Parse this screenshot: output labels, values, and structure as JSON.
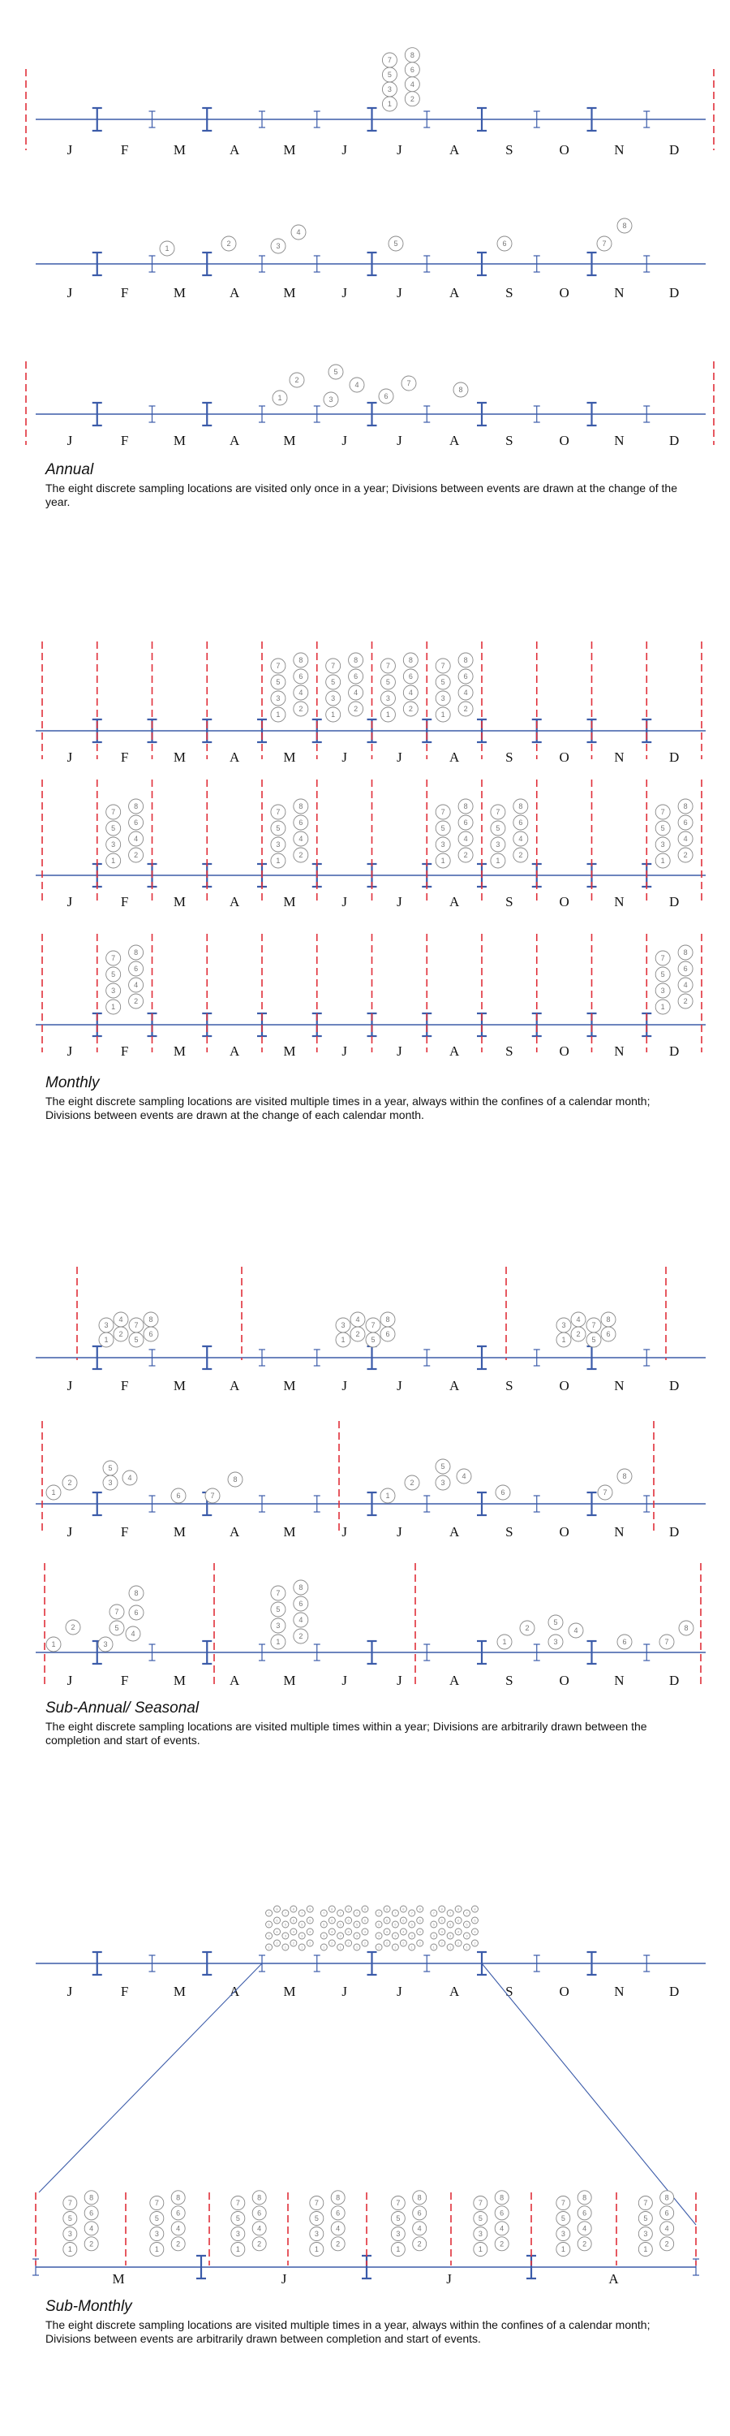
{
  "months": [
    "J",
    "F",
    "M",
    "A",
    "M",
    "J",
    "J",
    "A",
    "S",
    "O",
    "N",
    "D"
  ],
  "months_sub": [
    "M",
    "J",
    "J",
    "A"
  ],
  "captions": [
    {
      "title": "Annual",
      "body": "The eight discrete sampling locations are visited only once in a year; Divisions between events are drawn at the change of the year."
    },
    {
      "title": "Monthly",
      "body": "The eight discrete sampling locations are visited multiple times in a year, always within the confines of a calendar month; Divisions between events are drawn at the change of each calendar month."
    },
    {
      "title": "Sub-Annual/ Seasonal",
      "body": "The eight discrete sampling locations are visited multiple times within a year; Divisions are arbitrarily drawn between the completion and start of events."
    },
    {
      "title": "Sub-Monthly",
      "body": "The eight discrete sampling locations are visited multiple times in a year, always within the confines of a calendar month; Divisions between events are arbitrarily drawn between completion and start of events."
    }
  ],
  "colors": {
    "axis": "#3b5ba9",
    "divider": "#e0303a",
    "circle": "#888888",
    "text": "#111111"
  }
}
